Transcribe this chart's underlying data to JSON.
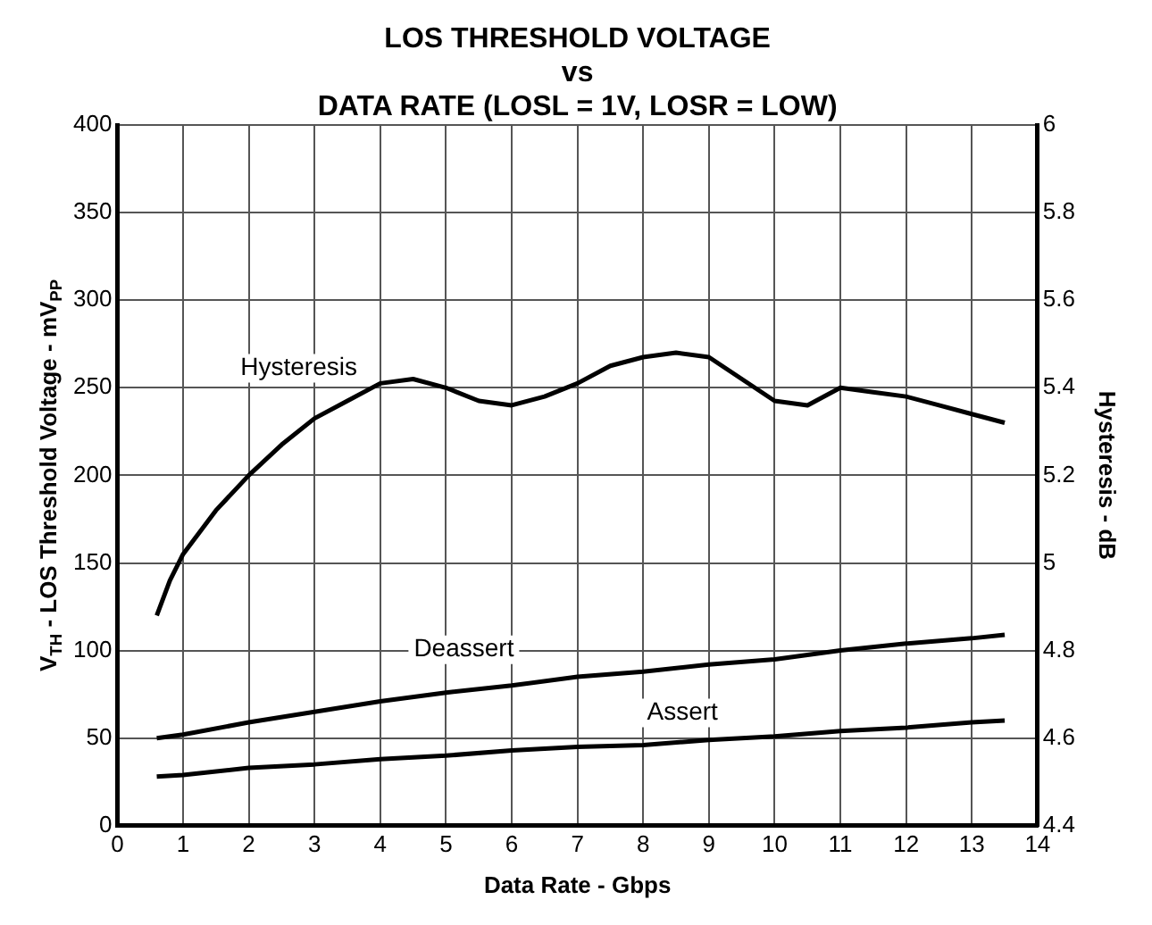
{
  "chart_data": {
    "type": "line",
    "title": "LOS THRESHOLD VOLTAGE\nvs\nDATA RATE (LOSL = 1V, LOSR = LOW)",
    "xlabel": "Data Rate - Gbps",
    "ylabel": "V$_{TH}$ - LOS Threshold Voltage - mV$_{PP}$",
    "y2label": "Hysteresis - dB",
    "series": [
      {
        "name": "Hysteresis",
        "color": "#000000",
        "axis": "y2",
        "x": [
          0.6,
          0.8,
          1,
          1.5,
          2,
          2.5,
          3,
          3.5,
          4,
          4.5,
          5,
          5.5,
          6,
          6.5,
          7,
          7.5,
          8,
          8.5,
          9,
          9.5,
          10,
          10.5,
          11,
          11.5,
          12,
          12.5,
          13,
          13.5
        ],
        "values": [
          4.88,
          4.96,
          5.02,
          5.12,
          5.2,
          5.27,
          5.33,
          5.37,
          5.41,
          5.42,
          5.4,
          5.37,
          5.36,
          5.38,
          5.41,
          5.45,
          5.47,
          5.48,
          5.47,
          5.42,
          5.37,
          5.36,
          5.4,
          5.39,
          5.38,
          5.36,
          5.34,
          5.32
        ]
      },
      {
        "name": "Deassert",
        "color": "#000000",
        "x": [
          0.6,
          1,
          2,
          3,
          4,
          5,
          6,
          7,
          8,
          9,
          10,
          11,
          12,
          13,
          13.5
        ],
        "values": [
          50,
          52,
          59,
          65,
          71,
          76,
          80,
          85,
          88,
          92,
          95,
          100,
          104,
          107,
          109
        ]
      },
      {
        "name": "Assert",
        "color": "#000000",
        "x": [
          0.6,
          1,
          2,
          3,
          4,
          5,
          6,
          7,
          8,
          9,
          10,
          11,
          12,
          13,
          13.5
        ],
        "values": [
          28,
          29,
          33,
          35,
          38,
          40,
          43,
          45,
          46,
          49,
          51,
          54,
          56,
          59,
          60
        ]
      }
    ],
    "xlim": [
      0,
      14
    ],
    "xticks": [
      0,
      1,
      2,
      3,
      4,
      5,
      6,
      7,
      8,
      9,
      10,
      11,
      12,
      13,
      14
    ],
    "ylim": [
      0,
      400
    ],
    "yticks": [
      0,
      50,
      100,
      150,
      200,
      250,
      300,
      350,
      400
    ],
    "y2lim": [
      4.4,
      6
    ],
    "y2ticks": [
      4.4,
      4.6,
      4.8,
      5,
      5.2,
      5.4,
      5.6,
      5.8,
      6
    ],
    "grid": true,
    "legend": false,
    "marker": "none",
    "line_style": "solid"
  }
}
